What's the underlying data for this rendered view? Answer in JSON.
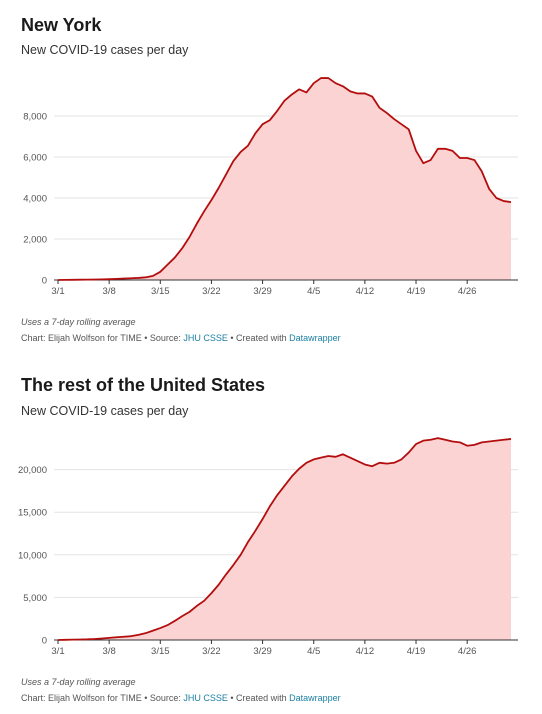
{
  "credit": {
    "prefix": "Chart: Elijah Wolfson for TIME • Source: ",
    "source": "JHU CSSE",
    "middle": " • Created with ",
    "tool": "Datawrapper"
  },
  "colors": {
    "line": "#b30d0d",
    "area": "#fbd3d3",
    "link": "#1d81a2"
  },
  "chart_data": [
    {
      "type": "area",
      "title": "New York",
      "subtitle": "New COVID-19 cases per day",
      "note": "Uses a 7-day rolling average",
      "xlabel": "",
      "ylabel": "",
      "ylim": [
        0,
        10000
      ],
      "xlim": [
        "3/1",
        "5/2"
      ],
      "y_ticks": [
        0,
        2000,
        4000,
        6000,
        8000
      ],
      "y_tick_labels": [
        "0",
        "2,000",
        "4,000",
        "6,000",
        "8,000"
      ],
      "x_ticks": [
        "3/1",
        "3/8",
        "3/15",
        "3/22",
        "3/29",
        "4/5",
        "4/12",
        "4/19",
        "4/26"
      ],
      "grid": true,
      "series": [
        {
          "x": [
            "3/1",
            "3/2",
            "3/3",
            "3/4",
            "3/5",
            "3/6",
            "3/7",
            "3/8",
            "3/9",
            "3/10",
            "3/11",
            "3/12",
            "3/13",
            "3/14",
            "3/15",
            "3/16",
            "3/17",
            "3/18",
            "3/19",
            "3/20",
            "3/21",
            "3/22",
            "3/23",
            "3/24",
            "3/25",
            "3/26",
            "3/27",
            "3/28",
            "3/29",
            "3/30",
            "3/31",
            "4/1",
            "4/2",
            "4/3",
            "4/4",
            "4/5",
            "4/6",
            "4/7",
            "4/8",
            "4/9",
            "4/10",
            "4/11",
            "4/12",
            "4/13",
            "4/14",
            "4/15",
            "4/16",
            "4/17",
            "4/18",
            "4/19",
            "4/20",
            "4/21",
            "4/22",
            "4/23",
            "4/24",
            "4/25",
            "4/26",
            "4/27",
            "4/28",
            "4/29",
            "4/30",
            "5/1",
            "5/2"
          ],
          "values": [
            0,
            5,
            10,
            15,
            20,
            25,
            30,
            40,
            55,
            70,
            85,
            100,
            130,
            200,
            400,
            750,
            1100,
            1550,
            2100,
            2750,
            3350,
            3900,
            4500,
            5150,
            5800,
            6250,
            6550,
            7150,
            7600,
            7800,
            8250,
            8750,
            9050,
            9300,
            9150,
            9600,
            9850,
            9850,
            9600,
            9450,
            9200,
            9100,
            9100,
            8950,
            8400,
            8150,
            7850,
            7600,
            7350,
            6300,
            5700,
            5850,
            6400,
            6400,
            6300,
            5950,
            5950,
            5850,
            5300,
            4450,
            4000,
            3850,
            3800
          ]
        }
      ]
    },
    {
      "type": "area",
      "title": "The rest of the United States",
      "subtitle": "New COVID-19 cases per day",
      "note": "Uses a 7-day rolling average",
      "xlabel": "",
      "ylabel": "",
      "ylim": [
        0,
        25000
      ],
      "xlim": [
        "3/1",
        "5/2"
      ],
      "y_ticks": [
        0,
        5000,
        10000,
        15000,
        20000
      ],
      "y_tick_labels": [
        "0",
        "5,000",
        "10,000",
        "15,000",
        "20,000"
      ],
      "x_ticks": [
        "3/1",
        "3/8",
        "3/15",
        "3/22",
        "3/29",
        "4/5",
        "4/12",
        "4/19",
        "4/26"
      ],
      "grid": true,
      "series": [
        {
          "x": [
            "3/1",
            "3/2",
            "3/3",
            "3/4",
            "3/5",
            "3/6",
            "3/7",
            "3/8",
            "3/9",
            "3/10",
            "3/11",
            "3/12",
            "3/13",
            "3/14",
            "3/15",
            "3/16",
            "3/17",
            "3/18",
            "3/19",
            "3/20",
            "3/21",
            "3/22",
            "3/23",
            "3/24",
            "3/25",
            "3/26",
            "3/27",
            "3/28",
            "3/29",
            "3/30",
            "3/31",
            "4/1",
            "4/2",
            "4/3",
            "4/4",
            "4/5",
            "4/6",
            "4/7",
            "4/8",
            "4/9",
            "4/10",
            "4/11",
            "4/12",
            "4/13",
            "4/14",
            "4/15",
            "4/16",
            "4/17",
            "4/18",
            "4/19",
            "4/20",
            "4/21",
            "4/22",
            "4/23",
            "4/24",
            "4/25",
            "4/26",
            "4/27",
            "4/28",
            "4/29",
            "4/30",
            "5/1",
            "5/2"
          ],
          "values": [
            0,
            20,
            40,
            60,
            80,
            120,
            180,
            250,
            320,
            380,
            450,
            600,
            800,
            1100,
            1400,
            1750,
            2250,
            2800,
            3300,
            4000,
            4600,
            5500,
            6500,
            7700,
            8800,
            10000,
            11500,
            12800,
            14200,
            15700,
            17000,
            18100,
            19200,
            20100,
            20800,
            21200,
            21400,
            21600,
            21500,
            21800,
            21400,
            21000,
            20600,
            20400,
            20800,
            20700,
            20800,
            21200,
            22000,
            23000,
            23400,
            23500,
            23700,
            23500,
            23300,
            23200,
            22800,
            22900,
            23200,
            23300,
            23400,
            23500,
            23600
          ]
        }
      ]
    }
  ]
}
